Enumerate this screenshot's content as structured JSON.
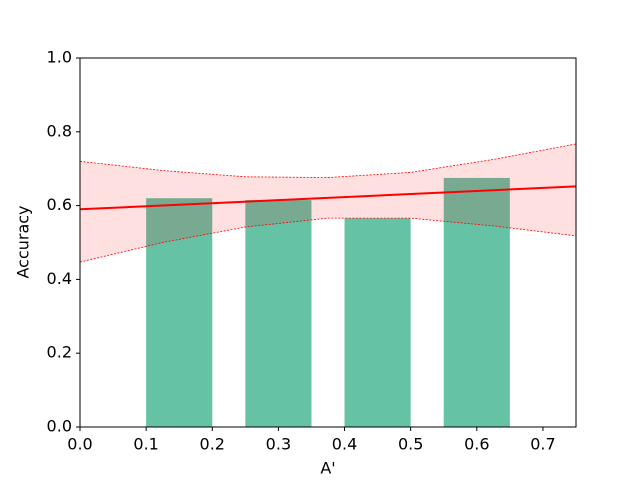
{
  "chart_data": {
    "type": "combo",
    "xlabel": "A'",
    "ylabel": "Accuracy",
    "xlim": [
      0,
      0.75
    ],
    "ylim": [
      0,
      1
    ],
    "xticks": [
      {
        "value": 0,
        "label": "0.0"
      },
      0.1,
      0.2,
      0.3,
      0.4,
      0.5,
      0.6,
      0.7
    ],
    "yticks": [
      {
        "value": 0,
        "label": "0.0"
      },
      0.2,
      0.4,
      0.6,
      0.8,
      {
        "value": 1,
        "label": "1.0"
      }
    ],
    "grid": false,
    "series": [
      {
        "type": "bar",
        "color": "#66c2a5",
        "x_left": [
          0.1,
          0.25,
          0.4,
          0.55
        ],
        "x_right": [
          0.2,
          0.35,
          0.5,
          0.65
        ],
        "values": [
          0.62,
          0.615,
          0.566,
          0.675
        ]
      },
      {
        "type": "band",
        "color": "#ff0000",
        "x": [
          0,
          0.125,
          0.25,
          0.375,
          0.5,
          0.625,
          0.75
        ],
        "upper": [
          0.72,
          0.695,
          0.678,
          0.676,
          0.69,
          0.725,
          0.767
        ],
        "lower": [
          0.447,
          0.5,
          0.542,
          0.566,
          0.566,
          0.545,
          0.518
        ]
      },
      {
        "type": "line",
        "color": "#ff0000",
        "x": [
          0,
          0.75
        ],
        "values": [
          0.59,
          0.652
        ]
      }
    ]
  }
}
